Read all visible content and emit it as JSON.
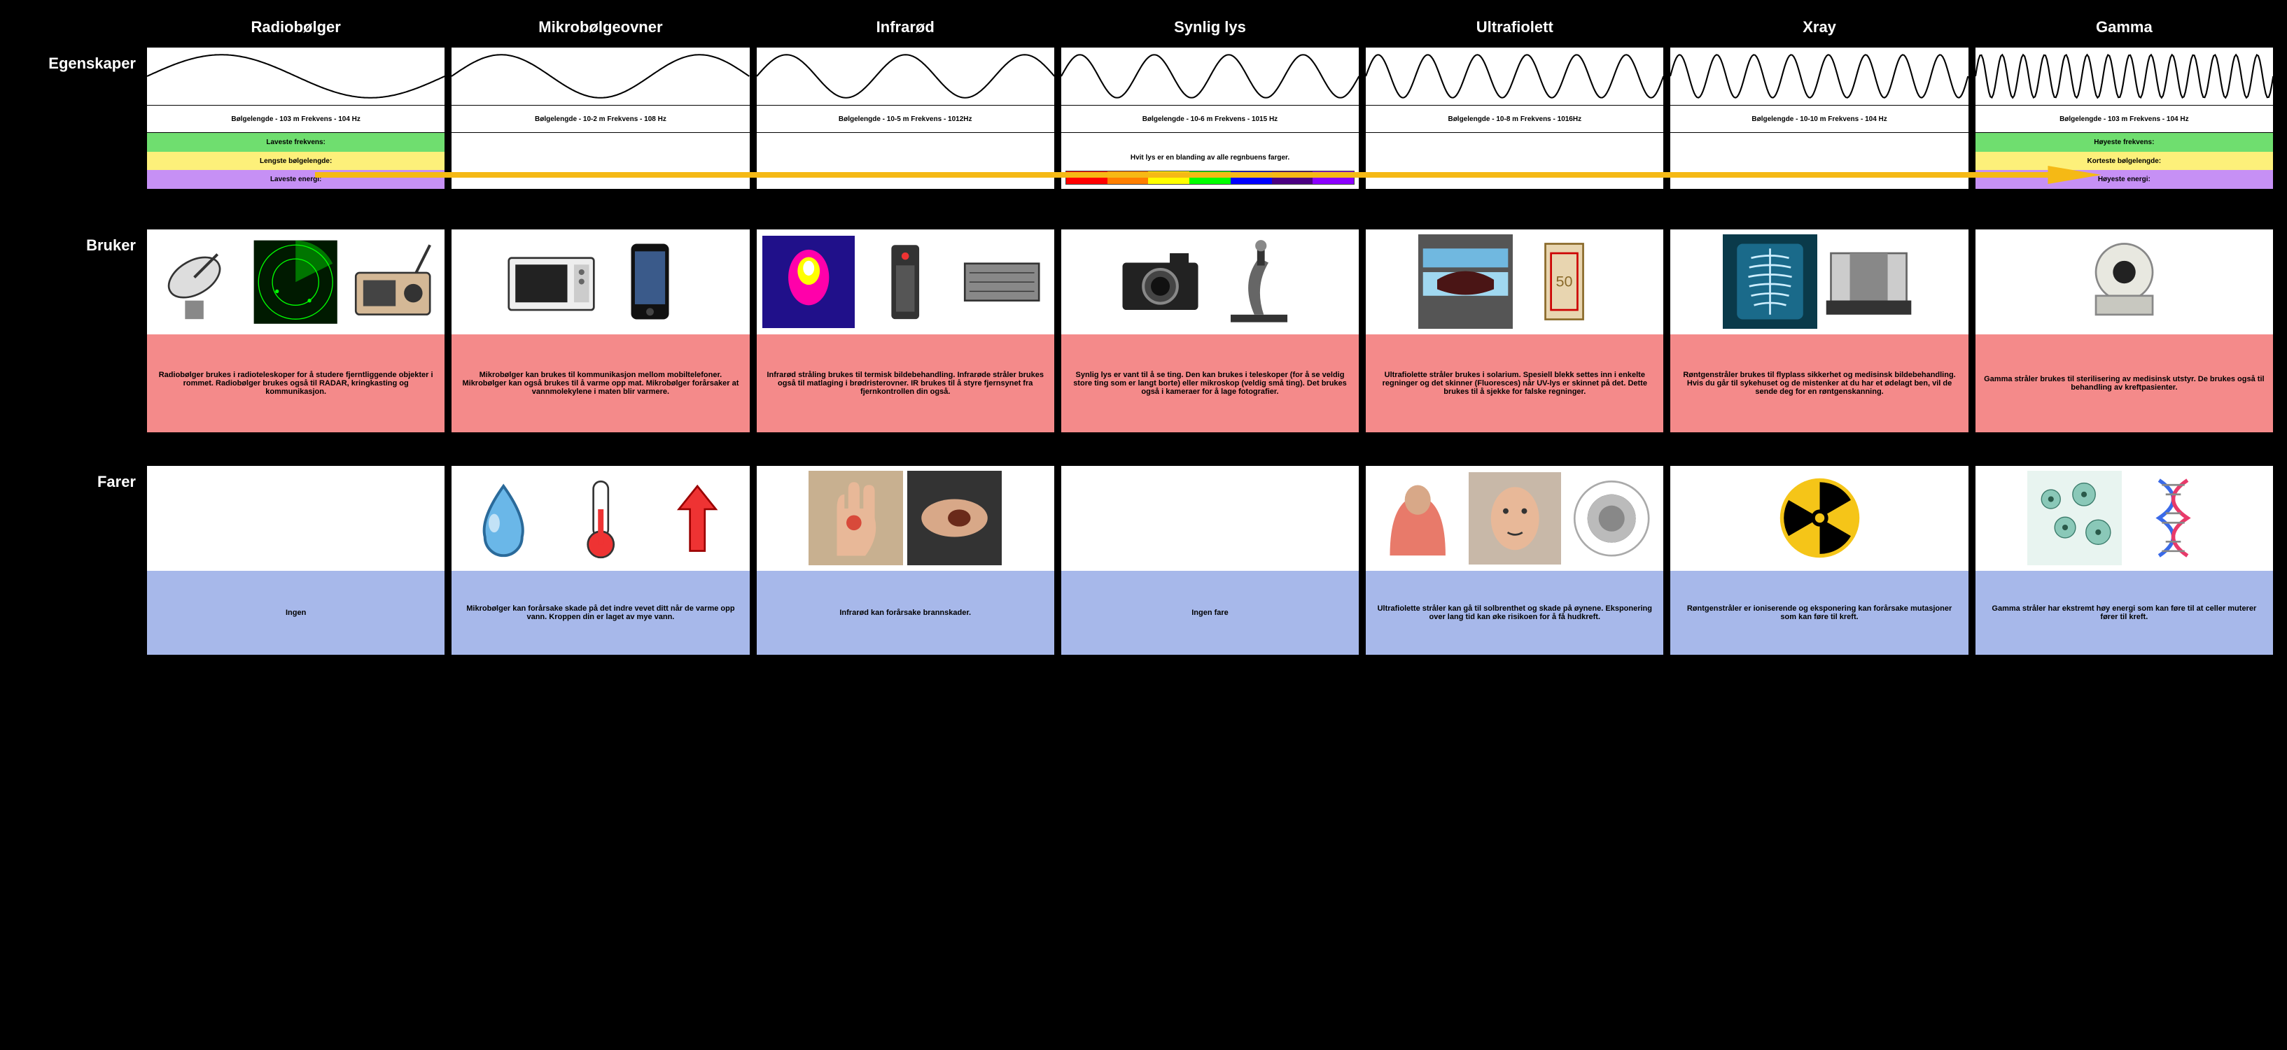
{
  "rowLabels": {
    "props": "Egenskaper",
    "uses": "Bruker",
    "dangers": "Farer"
  },
  "colors": {
    "uses_bg": "#f48a8a",
    "dangers_bg": "#a7b8ea",
    "band_green": "#6fde6f",
    "band_yellow": "#fdf07a",
    "band_purple": "#c690f5",
    "arrow": "#f5b915"
  },
  "leftBands": {
    "freq": "Laveste frekvens:",
    "wl": "Lengste bølgelengde:",
    "energy": "Laveste energi:"
  },
  "rightBands": {
    "freq": "Høyeste frekvens:",
    "wl": "Korteste bølgelengde:",
    "energy": "Høyeste energi:"
  },
  "visibleLabel": "Hvit lys er en blanding av alle regnbuens farger.",
  "spectrum": [
    "#ff0000",
    "#ff7f00",
    "#ffff00",
    "#00ff00",
    "#0000ff",
    "#4b0082",
    "#8b00ff"
  ],
  "columns": [
    {
      "name": "Radiobølger",
      "cycles": 1,
      "wl_text": "Bølgelengde - 103 m Frekvens - 104 Hz",
      "uses_icons": [
        "satellite-dish-icon",
        "radar-screen-icon",
        "radio-icon"
      ],
      "uses_text": "Radiobølger brukes i radioteleskoper for å studere fjerntliggende objekter i rommet. Radiobølger brukes også til RADAR, kringkasting og kommunikasjon.",
      "danger_icons": [],
      "danger_text": "Ingen"
    },
    {
      "name": "Mikrobølgeovner",
      "cycles": 1.5,
      "wl_text": "Bølgelengde - 10-2 m Frekvens - 108 Hz",
      "uses_icons": [
        "microwave-icon",
        "smartphone-icon"
      ],
      "uses_text": "Mikrobølger kan brukes til kommunikasjon mellom mobiltelefoner. Mikrobølger kan også brukes til å varme opp mat. Mikrobølger forårsaker at vannmolekylene i maten blir varmere.",
      "danger_icons": [
        "water-drop-icon",
        "thermometer-icon",
        "up-arrow-icon"
      ],
      "danger_text": "Mikrobølger kan forårsake skade på det indre vevet ditt når de varme opp vann. Kroppen din er laget av mye vann."
    },
    {
      "name": "Infrarød",
      "cycles": 2.5,
      "wl_text": "Bølgelengde - 10-5 m Frekvens - 1012Hz",
      "uses_icons": [
        "thermal-image-icon",
        "remote-control-icon",
        "grill-icon"
      ],
      "uses_text": "Infrarød stråling brukes til termisk bildebehandling. Infrarøde stråler brukes også til matlaging i brødristerovner. IR brukes til å styre fjernsynet fra fjernkontrollen din også.",
      "danger_icons": [
        "burn-hand-icon",
        "burn-arm-icon"
      ],
      "danger_text": "Infrarød kan forårsake brannskader."
    },
    {
      "name": "Synlig lys",
      "cycles": 4,
      "wl_text": "Bølgelengde - 10-6 m Frekvens - 1015 Hz",
      "uses_icons": [
        "camera-icon",
        "microscope-icon"
      ],
      "uses_text": "Synlig lys er vant til å se ting. Den kan brukes i teleskoper (for å se veldig store ting som er langt borte) eller mikroskop (veldig små ting). Det brukes også i kameraer for å lage fotografier.",
      "danger_icons": [],
      "danger_text": "Ingen fare"
    },
    {
      "name": "Ultrafiolett",
      "cycles": 6,
      "wl_text": "Bølgelengde - 10-8 m Frekvens - 1016Hz",
      "uses_icons": [
        "tanning-bed-icon",
        "banknote-uv-icon"
      ],
      "uses_text": "Ultrafiolette stråler brukes i solarium. Spesiell blekk settes inn i enkelte regninger og det skinner (Fluoresces) når UV-lys er skinnet på det. Dette brukes til å sjekke for falske regninger.",
      "danger_icons": [
        "sunburn-icon",
        "face-icon",
        "cataract-icon"
      ],
      "danger_text": "Ultrafiolette stråler kan gå til solbrenthet og skade på øynene. Eksponering over lang tid kan øke risikoen for å få hudkreft."
    },
    {
      "name": "Xray",
      "cycles": 8,
      "wl_text": "Bølgelengde - 10-10 m Frekvens - 104 Hz",
      "uses_icons": [
        "chest-xray-icon",
        "airport-scanner-icon"
      ],
      "uses_text": "Røntgenstråler brukes til flyplass sikkerhet og medisinsk bildebehandling. Hvis du går til sykehuset og de mistenker at du har et ødelagt ben, vil de sende deg for en røntgenskanning.",
      "danger_icons": [
        "radiation-symbol-icon"
      ],
      "danger_text": "Røntgenstråler er ioniserende og eksponering kan forårsake mutasjoner som kan føre til kreft."
    },
    {
      "name": "Gamma",
      "cycles": 14,
      "wl_text": "Bølgelengde - 103 m Frekvens - 104 Hz",
      "uses_icons": [
        "ct-scanner-icon"
      ],
      "uses_text": "Gamma stråler brukes til sterilisering av medisinsk utstyr. De brukes også til behandling av kreftpasienter.",
      "danger_icons": [
        "cell-tissue-icon",
        "dna-icon"
      ],
      "danger_text": "Gamma stråler har ekstremt høy energi som kan føre til at celler muterer fører til kreft."
    }
  ]
}
